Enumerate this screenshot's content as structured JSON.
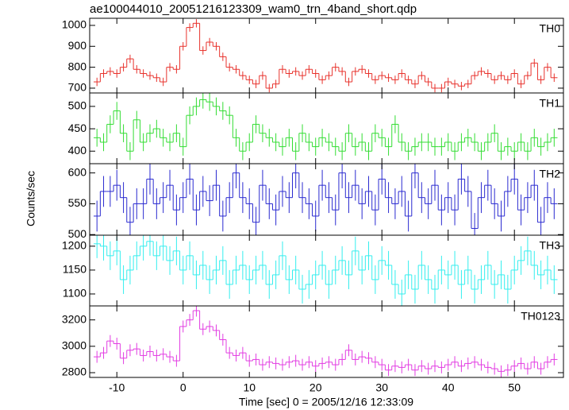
{
  "chart_data": [
    {
      "type": "line",
      "title": "ae100044010_20051216123309_wam0_trn_4band_short.qdp",
      "x": [
        -13,
        -12,
        -11,
        -10,
        -9,
        -8,
        -7,
        -6,
        -5,
        -4,
        -3,
        -2,
        -1,
        0,
        1,
        2,
        3,
        4,
        5,
        6,
        7,
        8,
        9,
        10,
        11,
        12,
        13,
        14,
        15,
        16,
        17,
        18,
        19,
        20,
        21,
        22,
        23,
        24,
        25,
        26,
        27,
        28,
        29,
        30,
        31,
        32,
        33,
        34,
        35,
        36,
        37,
        38,
        39,
        40,
        41,
        42,
        43,
        44,
        45,
        46,
        47,
        48,
        49,
        50,
        51,
        52,
        53,
        54,
        55,
        56
      ],
      "series": [
        {
          "name": "TH0",
          "color": "#e8322c",
          "values": [
            730,
            770,
            780,
            770,
            800,
            840,
            790,
            770,
            760,
            750,
            730,
            800,
            790,
            900,
            990,
            1010,
            880,
            920,
            900,
            850,
            800,
            790,
            760,
            740,
            720,
            760,
            700,
            720,
            790,
            770,
            780,
            760,
            790,
            770,
            740,
            760,
            800,
            780,
            730,
            780,
            790,
            770,
            740,
            760,
            750,
            740,
            770,
            740,
            720,
            760,
            730,
            700,
            700,
            730,
            720,
            710,
            720,
            760,
            780,
            770,
            740,
            760,
            740,
            770,
            720,
            760,
            820,
            740,
            800,
            750
          ]
        }
      ],
      "yerr": 20,
      "xlim": [
        -14.1,
        57.4
      ],
      "xticks": [
        -10,
        0,
        10,
        20,
        30,
        40,
        50
      ],
      "ylim": [
        677,
        1034
      ],
      "yticks": [
        700,
        800,
        900,
        1000
      ]
    },
    {
      "type": "line",
      "x": [
        -13,
        -12,
        -11,
        -10,
        -9,
        -8,
        -7,
        -6,
        -5,
        -4,
        -3,
        -2,
        -1,
        0,
        1,
        2,
        3,
        4,
        5,
        6,
        7,
        8,
        9,
        10,
        11,
        12,
        13,
        14,
        15,
        16,
        17,
        18,
        19,
        20,
        21,
        22,
        23,
        24,
        25,
        26,
        27,
        28,
        29,
        30,
        31,
        32,
        33,
        34,
        35,
        36,
        37,
        38,
        39,
        40,
        41,
        42,
        43,
        44,
        45,
        46,
        47,
        48,
        49,
        50,
        51,
        52,
        53,
        54,
        55,
        56
      ],
      "series": [
        {
          "name": "TH1",
          "color": "#33dd33",
          "values": [
            430,
            420,
            460,
            490,
            440,
            400,
            470,
            420,
            440,
            450,
            430,
            420,
            440,
            410,
            480,
            500,
            515,
            510,
            500,
            490,
            480,
            430,
            400,
            420,
            460,
            440,
            430,
            420,
            410,
            430,
            400,
            440,
            420,
            410,
            430,
            420,
            410,
            400,
            440,
            410,
            420,
            400,
            440,
            430,
            410,
            460,
            420,
            400,
            410,
            420,
            420,
            410,
            410,
            420,
            400,
            420,
            430,
            420,
            400,
            420,
            440,
            400,
            410,
            400,
            420,
            400,
            430,
            410,
            420,
            430
          ]
        }
      ],
      "yerr": 20,
      "xlim": [
        -14.1,
        57.4
      ],
      "xticks": [
        -10,
        0,
        10,
        20,
        30,
        40,
        50
      ],
      "ylim": [
        372,
        530
      ],
      "yticks": [
        400,
        450,
        500
      ]
    },
    {
      "type": "line",
      "ylabel": "Counts/sec",
      "x": [
        -13,
        -12,
        -11,
        -10,
        -9,
        -8,
        -7,
        -6,
        -5,
        -4,
        -3,
        -2,
        -1,
        0,
        1,
        2,
        3,
        4,
        5,
        6,
        7,
        8,
        9,
        10,
        11,
        12,
        13,
        14,
        15,
        16,
        17,
        18,
        19,
        20,
        21,
        22,
        23,
        24,
        25,
        26,
        27,
        28,
        29,
        30,
        31,
        32,
        33,
        34,
        35,
        36,
        37,
        38,
        39,
        40,
        41,
        42,
        43,
        44,
        45,
        46,
        47,
        48,
        49,
        50,
        51,
        52,
        53,
        54,
        55,
        56
      ],
      "series": [
        {
          "name": "TH2",
          "color": "#2a2ad0",
          "values": [
            530,
            570,
            570,
            580,
            560,
            520,
            550,
            550,
            590,
            550,
            560,
            580,
            540,
            560,
            590,
            540,
            570,
            555,
            580,
            530,
            560,
            600,
            560,
            550,
            520,
            580,
            550,
            540,
            570,
            560,
            600,
            560,
            550,
            530,
            580,
            560,
            540,
            600,
            560,
            580,
            550,
            570,
            540,
            590,
            560,
            550,
            570,
            530,
            600,
            560,
            550,
            580,
            540,
            560,
            540,
            590,
            570,
            510,
            560,
            580,
            550,
            530,
            570,
            590,
            540,
            560,
            580,
            520,
            560,
            550
          ]
        }
      ],
      "yerr": 25,
      "xlim": [
        -14.1,
        57.4
      ],
      "xticks": [
        -10,
        0,
        10,
        20,
        30,
        40,
        50
      ],
      "ylim": [
        499,
        615
      ],
      "yticks": [
        500,
        550,
        600
      ]
    },
    {
      "type": "line",
      "x": [
        -13,
        -12,
        -11,
        -10,
        -9,
        -8,
        -7,
        -6,
        -5,
        -4,
        -3,
        -2,
        -1,
        0,
        1,
        2,
        3,
        4,
        5,
        6,
        7,
        8,
        9,
        10,
        11,
        12,
        13,
        14,
        15,
        16,
        17,
        18,
        19,
        20,
        21,
        22,
        23,
        24,
        25,
        26,
        27,
        28,
        29,
        30,
        31,
        32,
        33,
        34,
        35,
        36,
        37,
        38,
        39,
        40,
        41,
        42,
        43,
        44,
        45,
        46,
        47,
        48,
        49,
        50,
        51,
        52,
        53,
        54,
        55,
        56
      ],
      "series": [
        {
          "name": "TH3",
          "color": "#33eeee",
          "values": [
            1205,
            1200,
            1180,
            1190,
            1130,
            1150,
            1180,
            1200,
            1210,
            1180,
            1200,
            1170,
            1190,
            1150,
            1180,
            1140,
            1160,
            1130,
            1150,
            1170,
            1120,
            1150,
            1160,
            1130,
            1150,
            1160,
            1120,
            1140,
            1180,
            1130,
            1150,
            1110,
            1120,
            1140,
            1160,
            1120,
            1150,
            1170,
            1140,
            1190,
            1150,
            1180,
            1130,
            1170,
            1160,
            1120,
            1100,
            1140,
            1110,
            1160,
            1130,
            1110,
            1150,
            1140,
            1160,
            1120,
            1150,
            1110,
            1130,
            1160,
            1120,
            1140,
            1110,
            1150,
            1170,
            1190,
            1160,
            1140,
            1150,
            1130
          ]
        }
      ],
      "yerr": 30,
      "xlim": [
        -14.1,
        57.4
      ],
      "xticks": [
        -10,
        0,
        10,
        20,
        30,
        40,
        50
      ],
      "ylim": [
        1075,
        1223
      ],
      "yticks": [
        1100,
        1150,
        1200
      ]
    },
    {
      "type": "line",
      "xlabel": "Time [sec] 0 = 2005/12/16 12:33:09",
      "x": [
        -13,
        -12,
        -11,
        -10,
        -9,
        -8,
        -7,
        -6,
        -5,
        -4,
        -3,
        -2,
        -1,
        0,
        1,
        2,
        3,
        4,
        5,
        6,
        7,
        8,
        9,
        10,
        11,
        12,
        13,
        14,
        15,
        16,
        17,
        18,
        19,
        20,
        21,
        22,
        23,
        24,
        25,
        26,
        27,
        28,
        29,
        30,
        31,
        32,
        33,
        34,
        35,
        36,
        37,
        38,
        39,
        40,
        41,
        42,
        43,
        44,
        45,
        46,
        47,
        48,
        49,
        50,
        51,
        52,
        53,
        54,
        55,
        56
      ],
      "series": [
        {
          "name": "TH0123",
          "color": "#e23ce2",
          "values": [
            2920,
            2950,
            3040,
            3020,
            2910,
            2970,
            2980,
            2930,
            2960,
            2930,
            2940,
            2920,
            2890,
            3150,
            3200,
            3270,
            3130,
            3150,
            3120,
            3050,
            2950,
            2930,
            2950,
            2890,
            2900,
            2860,
            2880,
            2870,
            2860,
            2880,
            2890,
            2860,
            2880,
            2850,
            2870,
            2880,
            2860,
            2900,
            2970,
            2900,
            2920,
            2910,
            2880,
            2860,
            2820,
            2850,
            2840,
            2860,
            2820,
            2850,
            2830,
            2850,
            2840,
            2860,
            2880,
            2850,
            2870,
            2880,
            2860,
            2840,
            2830,
            2810,
            2820,
            2850,
            2870,
            2830,
            2880,
            2830,
            2880,
            2900
          ]
        }
      ],
      "yerr": 45,
      "xlim": [
        -14.1,
        57.4
      ],
      "xticks": [
        -10,
        0,
        10,
        20,
        30,
        40,
        50
      ],
      "ylim": [
        2764,
        3306
      ],
      "yticks": [
        2800,
        3000,
        3200
      ]
    }
  ]
}
